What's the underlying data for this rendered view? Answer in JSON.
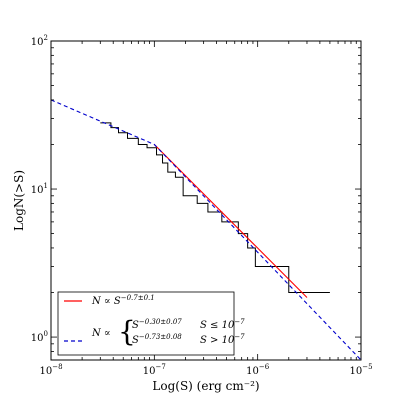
{
  "chart_data": {
    "type": "line",
    "xlabel": "Log(S) (erg cm⁻²)",
    "ylabel": "LogN(>S)",
    "x_scale": "log",
    "y_scale": "log",
    "xlim": [
      1e-08,
      1e-05
    ],
    "ylim": [
      0.7,
      100
    ],
    "x_ticks": [
      {
        "value": 1e-08,
        "base": "10",
        "exp": "−8"
      },
      {
        "value": 1e-07,
        "base": "10",
        "exp": "−7"
      },
      {
        "value": 1e-06,
        "base": "10",
        "exp": "−6"
      },
      {
        "value": 1e-05,
        "base": "10",
        "exp": "−5"
      }
    ],
    "y_ticks": [
      {
        "value": 1,
        "base": "10",
        "exp": "0"
      },
      {
        "value": 10,
        "base": "10",
        "exp": "1"
      },
      {
        "value": 100,
        "base": "10",
        "exp": "2"
      }
    ],
    "grid": false,
    "legend_position": "bottom-left",
    "series": [
      {
        "kind": "step",
        "color": "#000000",
        "points": [
          [
            3e-08,
            28
          ],
          [
            3.8e-08,
            28
          ],
          [
            3.8e-08,
            26
          ],
          [
            4.5e-08,
            26
          ],
          [
            4.5e-08,
            24
          ],
          [
            5.5e-08,
            24
          ],
          [
            5.5e-08,
            22
          ],
          [
            7e-08,
            22
          ],
          [
            7e-08,
            20
          ],
          [
            8.5e-08,
            20
          ],
          [
            8.5e-08,
            19
          ],
          [
            1.05e-07,
            19
          ],
          [
            1.05e-07,
            17
          ],
          [
            1.2e-07,
            17
          ],
          [
            1.2e-07,
            15
          ],
          [
            1.35e-07,
            15
          ],
          [
            1.35e-07,
            13
          ],
          [
            1.6e-07,
            13
          ],
          [
            1.6e-07,
            12
          ],
          [
            1.9e-07,
            12
          ],
          [
            1.9e-07,
            9
          ],
          [
            2.6e-07,
            9
          ],
          [
            2.6e-07,
            8
          ],
          [
            3.3e-07,
            8
          ],
          [
            3.3e-07,
            7
          ],
          [
            4.5e-07,
            7
          ],
          [
            4.5e-07,
            6
          ],
          [
            6.5e-07,
            6
          ],
          [
            6.5e-07,
            5
          ],
          [
            8e-07,
            5
          ],
          [
            8e-07,
            4
          ],
          [
            9.5e-07,
            4
          ],
          [
            9.5e-07,
            3
          ],
          [
            2e-06,
            3
          ],
          [
            2e-06,
            2
          ],
          [
            5e-06,
            2
          ]
        ]
      },
      {
        "kind": "power_law_fit",
        "color": "#ff0000",
        "dash": "solid",
        "points": [
          [
            1e-07,
            20
          ],
          [
            3e-06,
            1.85
          ]
        ]
      },
      {
        "kind": "broken_power_law_fit",
        "color": "#0000cc",
        "dash": "dashed",
        "points": [
          [
            1e-08,
            40
          ],
          [
            1e-07,
            20
          ],
          [
            1e-05,
            0.7
          ]
        ]
      }
    ],
    "legend": [
      {
        "color": "#ff0000",
        "dash": "solid",
        "text": "N ∝ S",
        "exp": "−0.7±0.1"
      },
      {
        "color": "#0000cc",
        "dash": "dashed",
        "text": "N ∝",
        "cases": [
          {
            "expr": "S",
            "exp": "−0.30±0.07",
            "cond": "S ≤ 10",
            "cond_exp": "−7"
          },
          {
            "expr": "S",
            "exp": "−0.73±0.08",
            "cond": "S > 10",
            "cond_exp": "−7"
          }
        ]
      }
    ]
  }
}
